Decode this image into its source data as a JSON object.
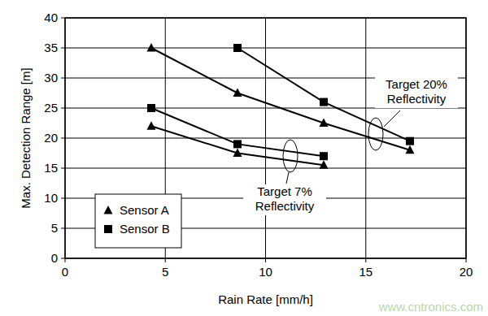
{
  "chart_data": {
    "type": "line",
    "x_label": "Rain Rate [mm/h]",
    "y_label": "Max. Detection Range [m]",
    "xlim": [
      0,
      20
    ],
    "xticks": [
      0,
      5,
      10,
      15,
      20
    ],
    "ylim": [
      0,
      40
    ],
    "yticks": [
      0,
      5,
      10,
      15,
      20,
      25,
      30,
      35,
      40
    ],
    "grid": true,
    "legend": "lower-left",
    "series": [
      {
        "name": "Sensor A",
        "color": "#000000",
        "marker": "triangle",
        "line_style": "solid",
        "x": [
          4.3,
          8.6,
          12.9,
          17.2
        ],
        "values": [
          35,
          27.5,
          22.5,
          18
        ]
      },
      {
        "name": "Sensor B",
        "color": "#000000",
        "marker": "square",
        "line_style": "solid",
        "x": [
          8.6,
          12.9,
          17.2
        ],
        "values": [
          35,
          26,
          19.5
        ]
      },
      {
        "name": "Sensor A",
        "color": "#000000",
        "marker": "triangle",
        "line_style": "solid",
        "x": [
          4.3,
          8.6,
          12.9
        ],
        "values": [
          22,
          17.5,
          15.5
        ]
      },
      {
        "name": "Sensor B",
        "color": "#000000",
        "marker": "square",
        "line_style": "solid",
        "x": [
          4.3,
          8.6,
          12.9
        ],
        "values": [
          25,
          19,
          17
        ]
      }
    ],
    "annotations": [
      {
        "lines": [
          "Target 20%",
          "Reflectivity"
        ]
      },
      {
        "lines": [
          "Target 7%",
          "Reflectivity"
        ]
      }
    ],
    "watermark": "www.cntronics.com"
  }
}
